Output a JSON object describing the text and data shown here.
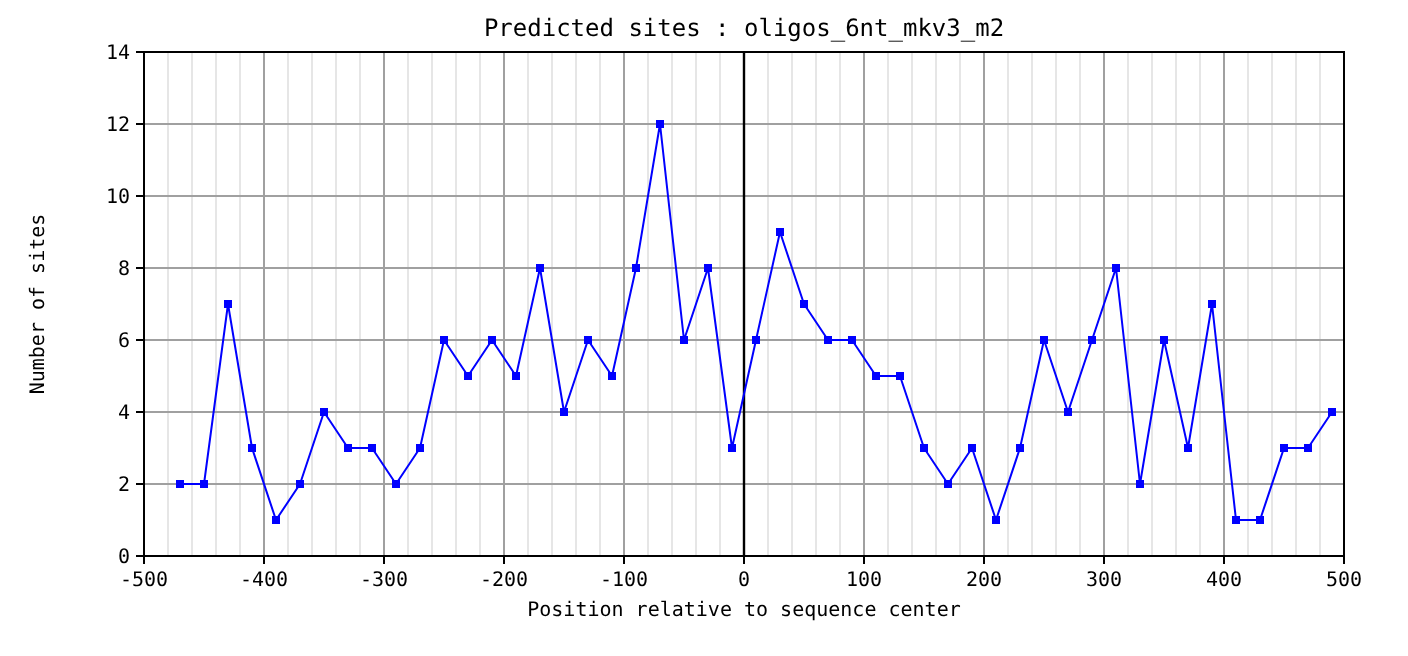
{
  "chart_data": {
    "type": "line",
    "title": "Predicted sites : oligos_6nt_mkv3_m2",
    "xlabel": "Position relative to sequence center",
    "ylabel": "Number of sites",
    "x": [
      -470,
      -450,
      -430,
      -410,
      -390,
      -370,
      -350,
      -330,
      -310,
      -290,
      -270,
      -250,
      -230,
      -210,
      -190,
      -170,
      -150,
      -130,
      -110,
      -90,
      -70,
      -50,
      -30,
      -10,
      10,
      30,
      50,
      70,
      90,
      110,
      130,
      150,
      170,
      190,
      210,
      230,
      250,
      270,
      290,
      310,
      330,
      350,
      370,
      390,
      410,
      430,
      450,
      470,
      490
    ],
    "series": [
      {
        "color": "#0000ff",
        "values": [
          2,
          2,
          7,
          3,
          1,
          2,
          4,
          3,
          3,
          2,
          3,
          6,
          5,
          6,
          5,
          8,
          4,
          6,
          5,
          8,
          12,
          6,
          8,
          3,
          6,
          9,
          7,
          6,
          6,
          5,
          5,
          3,
          2,
          3,
          1,
          3,
          6,
          4,
          6,
          8,
          2,
          6,
          3,
          7,
          1,
          1,
          3,
          3,
          4
        ]
      }
    ],
    "xlim": [
      -500,
      500
    ],
    "xticks": [
      -500,
      -400,
      -300,
      -200,
      -100,
      0,
      100,
      200,
      300,
      400,
      500
    ],
    "ylim": [
      0,
      14
    ],
    "yticks": [
      0,
      2,
      4,
      6,
      8,
      10,
      12,
      14
    ],
    "grid": true,
    "marker": "square",
    "line_style": "solid",
    "ref_lines": [
      {
        "axis": "x",
        "value": 0,
        "color": "#000000"
      }
    ]
  }
}
